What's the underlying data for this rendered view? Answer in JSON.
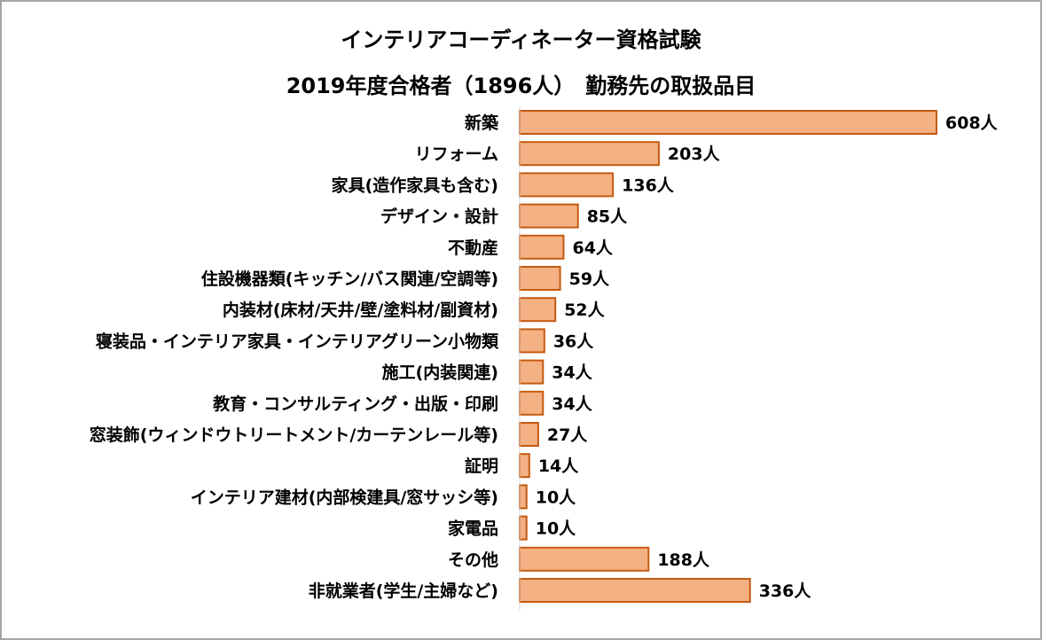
{
  "chart_data": {
    "type": "bar",
    "orientation": "horizontal",
    "title": "インテリアコーディネーター資格試験",
    "subtitle": "2019年度合格者（1896人）　勤務先の取扱品目",
    "categories": [
      "新築",
      "リフォーム",
      "家具(造作家具も含む)",
      "デザイン・設計",
      "不動産",
      "住設機器類(キッチン/バス関連/空調等)",
      "内装材(床材/天井/壁/塗料材/副資材)",
      "寝装品・インテリア家具・インテリアグリーン小物類",
      "施工(内装関連)",
      "教育・コンサルティング・出版・印刷",
      "窓装飾(ウィンドウトリートメント/カーテンレール等)",
      "証明",
      "インテリア建材(内部検建具/窓サッシ等)",
      "家電品",
      "その他",
      "非就業者(学生/主婦など)"
    ],
    "values": [
      608,
      203,
      136,
      85,
      64,
      59,
      52,
      36,
      34,
      34,
      27,
      14,
      10,
      10,
      188,
      336
    ],
    "value_suffix": "人",
    "xlim": [
      0,
      608
    ],
    "grid": false,
    "legend": "none",
    "bar_fill": "#f4b183",
    "bar_stroke": "#c55a11"
  }
}
